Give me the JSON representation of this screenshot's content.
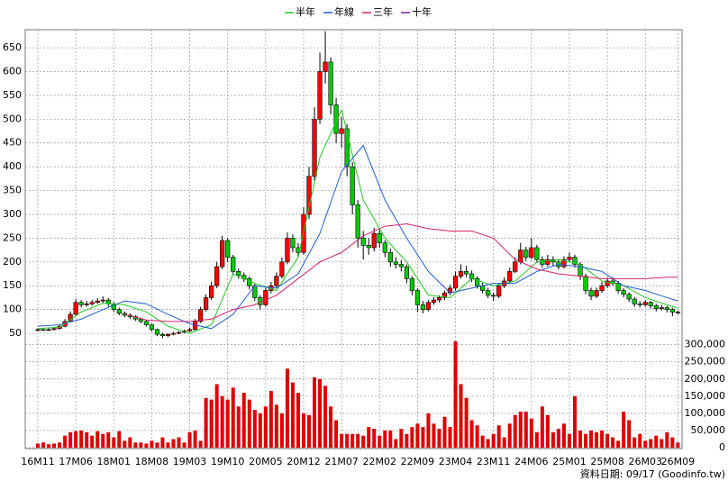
{
  "chart_data": {
    "type": "candlestick",
    "footer": "資料日期: 09/17  (Goodinfo.tw)",
    "categories": [
      "16M11",
      null,
      null,
      null,
      null,
      null,
      null,
      "17M06",
      null,
      null,
      null,
      null,
      null,
      null,
      "18M01",
      null,
      null,
      null,
      null,
      null,
      null,
      "18M08",
      null,
      null,
      null,
      null,
      null,
      null,
      "19M03",
      null,
      null,
      null,
      null,
      null,
      null,
      "19M10",
      null,
      null,
      null,
      null,
      null,
      null,
      "20M05",
      null,
      null,
      null,
      null,
      null,
      null,
      "20M12",
      null,
      null,
      null,
      null,
      null,
      null,
      "21M07",
      null,
      null,
      null,
      null,
      null,
      null,
      "22M02",
      null,
      null,
      null,
      null,
      null,
      null,
      "22M09",
      null,
      null,
      null,
      null,
      null,
      null,
      "23M04",
      null,
      null,
      null,
      null,
      null,
      null,
      "23M11",
      null,
      null,
      null,
      null,
      null,
      null,
      "24M06",
      null,
      null,
      null,
      null,
      null,
      null,
      "25M01",
      null,
      null,
      null,
      null,
      null,
      null,
      "25M08",
      null,
      null,
      null,
      null,
      null,
      null,
      "26M03",
      null,
      null,
      null,
      null,
      null,
      "26M09"
    ],
    "open": [
      56,
      58,
      57,
      58,
      60,
      65,
      75,
      90,
      115,
      110,
      112,
      115,
      118,
      120,
      112,
      100,
      92,
      88,
      85,
      80,
      75,
      68,
      58,
      48,
      45,
      48,
      50,
      52,
      55,
      58,
      75,
      100,
      125,
      150,
      190,
      245,
      210,
      180,
      172,
      165,
      150,
      125,
      110,
      140,
      150,
      170,
      200,
      250,
      230,
      220,
      300,
      380,
      500,
      600,
      620,
      530,
      470,
      480,
      400,
      320,
      250,
      235,
      230,
      260,
      240,
      220,
      200,
      195,
      190,
      165,
      140,
      110,
      100,
      115,
      120,
      125,
      135,
      145,
      170,
      180,
      175,
      165,
      150,
      140,
      130,
      128,
      150,
      160,
      180,
      200,
      225,
      210,
      230,
      205,
      195,
      205,
      200,
      190,
      205,
      210,
      195,
      170,
      140,
      128,
      140,
      150,
      160,
      155,
      140,
      132,
      122,
      112,
      110,
      115,
      108,
      102,
      104,
      100,
      95
    ],
    "high": [
      61,
      60,
      61,
      63,
      68,
      80,
      96,
      122,
      120,
      118,
      120,
      124,
      128,
      124,
      116,
      104,
      96,
      92,
      88,
      83,
      78,
      70,
      60,
      51,
      50,
      53,
      55,
      58,
      62,
      80,
      106,
      132,
      158,
      200,
      255,
      250,
      215,
      186,
      178,
      170,
      155,
      130,
      146,
      158,
      178,
      210,
      262,
      258,
      240,
      315,
      400,
      525,
      640,
      685,
      630,
      545,
      505,
      490,
      410,
      330,
      265,
      250,
      272,
      268,
      246,
      228,
      210,
      204,
      195,
      170,
      145,
      118,
      120,
      126,
      130,
      140,
      152,
      180,
      195,
      192,
      182,
      170,
      156,
      146,
      136,
      156,
      168,
      188,
      210,
      240,
      232,
      250,
      236,
      212,
      215,
      212,
      206,
      212,
      220,
      215,
      200,
      175,
      146,
      146,
      158,
      168,
      168,
      160,
      145,
      136,
      126,
      118,
      120,
      118,
      112,
      110,
      108,
      104,
      98
    ],
    "low": [
      54,
      55,
      55,
      56,
      58,
      63,
      73,
      88,
      104,
      106,
      108,
      112,
      114,
      106,
      95,
      88,
      84,
      80,
      76,
      71,
      64,
      54,
      44,
      40,
      42,
      46,
      48,
      50,
      53,
      56,
      72,
      96,
      120,
      145,
      185,
      200,
      172,
      165,
      158,
      142,
      118,
      100,
      106,
      134,
      145,
      165,
      195,
      220,
      210,
      215,
      290,
      370,
      490,
      575,
      510,
      450,
      440,
      380,
      300,
      230,
      205,
      215,
      222,
      230,
      210,
      190,
      186,
      180,
      155,
      130,
      95,
      92,
      96,
      110,
      115,
      120,
      130,
      140,
      165,
      168,
      158,
      144,
      134,
      124,
      118,
      124,
      145,
      155,
      176,
      195,
      202,
      205,
      198,
      188,
      190,
      192,
      184,
      186,
      200,
      188,
      162,
      132,
      120,
      124,
      135,
      145,
      150,
      134,
      126,
      116,
      106,
      104,
      106,
      102,
      96,
      98,
      94,
      86,
      90
    ],
    "close": [
      58,
      57,
      58,
      60,
      65,
      75,
      90,
      115,
      110,
      112,
      115,
      118,
      120,
      112,
      100,
      92,
      88,
      85,
      80,
      75,
      68,
      58,
      48,
      45,
      48,
      50,
      52,
      55,
      58,
      75,
      100,
      125,
      150,
      190,
      245,
      210,
      180,
      172,
      165,
      150,
      125,
      110,
      140,
      150,
      170,
      200,
      250,
      230,
      220,
      300,
      380,
      500,
      600,
      620,
      530,
      470,
      480,
      400,
      320,
      250,
      235,
      230,
      260,
      240,
      220,
      200,
      195,
      190,
      165,
      140,
      110,
      100,
      115,
      120,
      125,
      135,
      145,
      170,
      180,
      175,
      165,
      150,
      140,
      130,
      128,
      150,
      160,
      180,
      200,
      225,
      210,
      230,
      205,
      195,
      205,
      200,
      190,
      205,
      210,
      195,
      170,
      140,
      128,
      140,
      150,
      160,
      155,
      140,
      132,
      122,
      112,
      110,
      115,
      108,
      102,
      104,
      100,
      95,
      93
    ],
    "volume": [
      12000,
      15000,
      10000,
      12000,
      15000,
      35000,
      45000,
      48000,
      50000,
      45000,
      35000,
      48000,
      40000,
      45000,
      30000,
      48000,
      20000,
      30000,
      15000,
      15000,
      12000,
      20000,
      15000,
      30000,
      15000,
      25000,
      30000,
      15000,
      45000,
      50000,
      20000,
      145000,
      140000,
      185000,
      150000,
      140000,
      175000,
      120000,
      160000,
      140000,
      110000,
      100000,
      120000,
      165000,
      125000,
      100000,
      230000,
      190000,
      160000,
      100000,
      95000,
      205000,
      200000,
      180000,
      120000,
      80000,
      40000,
      40000,
      40000,
      40000,
      35000,
      60000,
      55000,
      35000,
      50000,
      50000,
      25000,
      55000,
      40000,
      60000,
      70000,
      60000,
      100000,
      70000,
      55000,
      90000,
      60000,
      310000,
      185000,
      145000,
      80000,
      65000,
      35000,
      25000,
      40000,
      65000,
      30000,
      70000,
      95000,
      105000,
      105000,
      85000,
      45000,
      120000,
      95000,
      45000,
      55000,
      70000,
      40000,
      150000,
      50000,
      40000,
      50000,
      45000,
      50000,
      40000,
      30000,
      20000,
      105000,
      80000,
      30000,
      40000,
      20000,
      25000,
      35000,
      25000,
      45000,
      30000,
      15000
    ],
    "up_color": "#ff0000",
    "down_color": "#00cc00",
    "volume_color": "#e00000",
    "ylim": [
      35,
      688
    ],
    "yticks": [
      50,
      100,
      150,
      200,
      250,
      300,
      350,
      400,
      450,
      500,
      550,
      600,
      650
    ],
    "y2lim": [
      0,
      320000
    ],
    "y2ticks": [
      0,
      {
        "value": 50000,
        "label": "50,000"
      },
      {
        "value": 100000,
        "label": "100,000"
      },
      {
        "value": 150000,
        "label": "150,000"
      },
      {
        "value": 200000,
        "label": "200,000"
      },
      {
        "value": 250000,
        "label": "250,000"
      },
      {
        "value": 300000,
        "label": "300,000"
      }
    ],
    "grid": true,
    "legend": "top",
    "series": [
      {
        "name": "半年",
        "color": "#22cc22",
        "x": [
          0,
          4,
          8,
          12,
          16,
          20,
          24,
          28,
          32,
          36,
          40,
          44,
          48,
          52,
          56,
          60,
          64,
          68,
          72,
          76,
          80,
          84,
          88,
          92,
          96,
          100,
          104,
          108,
          112,
          116,
          118
        ],
        "values": [
          60,
          63,
          95,
          113,
          110,
          95,
          65,
          50,
          68,
          175,
          155,
          140,
          210,
          420,
          520,
          330,
          250,
          200,
          130,
          125,
          165,
          150,
          160,
          200,
          205,
          195,
          160,
          150,
          125,
          110,
          103
        ]
      },
      {
        "name": "年線",
        "color": "#1f5fd6",
        "x": [
          0,
          4,
          8,
          12,
          16,
          20,
          24,
          28,
          32,
          36,
          40,
          44,
          48,
          52,
          56,
          60,
          64,
          68,
          72,
          76,
          80,
          84,
          88,
          92,
          96,
          100,
          104,
          108,
          112,
          116,
          118
        ],
        "values": [
          65,
          68,
          80,
          100,
          118,
          112,
          90,
          70,
          60,
          90,
          150,
          145,
          175,
          260,
          390,
          445,
          330,
          250,
          180,
          135,
          145,
          155,
          155,
          180,
          195,
          190,
          180,
          150,
          140,
          125,
          118
        ]
      },
      {
        "name": "三年",
        "color": "#d6226f",
        "x": [
          16,
          20,
          24,
          28,
          32,
          36,
          40,
          44,
          48,
          52,
          56,
          60,
          64,
          68,
          72,
          76,
          80,
          84,
          88,
          92,
          96,
          100,
          104,
          108,
          112,
          116,
          118
        ],
        "values": [
          90,
          78,
          75,
          75,
          80,
          100,
          110,
          130,
          165,
          200,
          220,
          255,
          275,
          280,
          270,
          265,
          265,
          250,
          205,
          185,
          175,
          170,
          165,
          165,
          165,
          168,
          168
        ]
      },
      {
        "name": "十年",
        "color": "#7a1fa0",
        "x": [],
        "values": []
      }
    ]
  }
}
